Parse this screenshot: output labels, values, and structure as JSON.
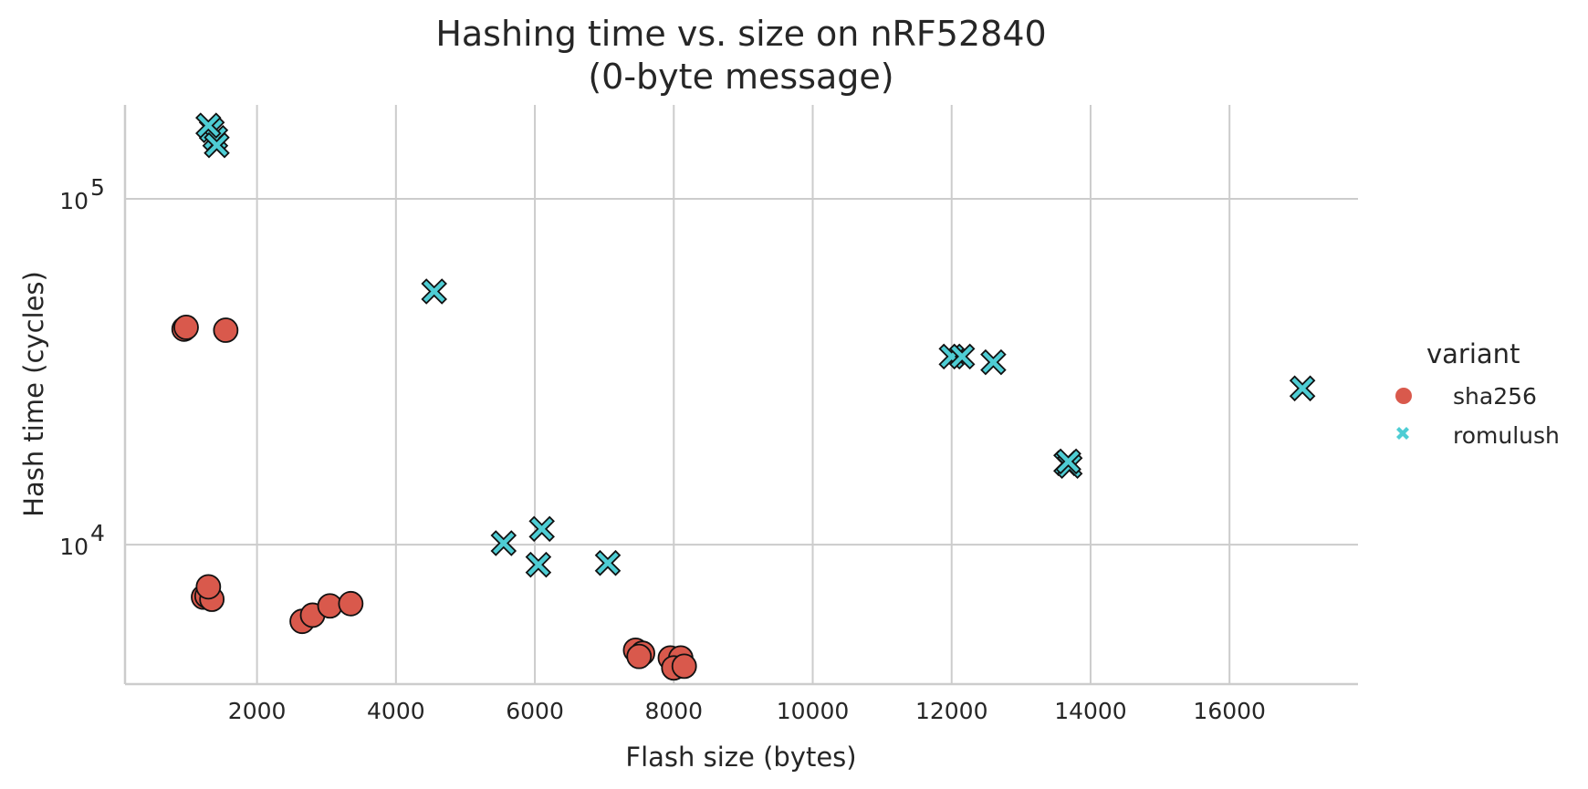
{
  "chart_data": {
    "type": "scatter",
    "title": "Hashing time vs. size on nRF52840",
    "subtitle": "(0-byte message)",
    "xlabel": "Flash size (bytes)",
    "ylabel": "Hash time (cycles)",
    "xlim": [
      100,
      17850
    ],
    "ylim": [
      3950,
      187000
    ],
    "xscale": "linear",
    "yscale": "log",
    "xticks": [
      2000,
      4000,
      6000,
      8000,
      10000,
      12000,
      14000,
      16000
    ],
    "xtick_labels": [
      "2000",
      "4000",
      "6000",
      "8000",
      "10000",
      "12000",
      "14000",
      "16000"
    ],
    "yticks": [
      10000,
      100000
    ],
    "ytick_labels": [
      {
        "base": "10",
        "exp": "4"
      },
      {
        "base": "10",
        "exp": "5"
      }
    ],
    "grid": true,
    "legend_title": "variant",
    "legend_position": "right",
    "series": [
      {
        "name": "sha256",
        "marker": "circle",
        "color": "#d9594c",
        "edge_color": "#111111",
        "points": [
          {
            "x": 950,
            "y": 42000
          },
          {
            "x": 980,
            "y": 42500
          },
          {
            "x": 1550,
            "y": 41700
          },
          {
            "x": 1230,
            "y": 7050
          },
          {
            "x": 1280,
            "y": 7100
          },
          {
            "x": 1350,
            "y": 6950
          },
          {
            "x": 1300,
            "y": 7550
          },
          {
            "x": 2650,
            "y": 6000
          },
          {
            "x": 2800,
            "y": 6250
          },
          {
            "x": 3050,
            "y": 6650
          },
          {
            "x": 3350,
            "y": 6750
          },
          {
            "x": 7450,
            "y": 4950
          },
          {
            "x": 7550,
            "y": 4850
          },
          {
            "x": 7500,
            "y": 4750
          },
          {
            "x": 7950,
            "y": 4700
          },
          {
            "x": 8100,
            "y": 4700
          },
          {
            "x": 8000,
            "y": 4400
          },
          {
            "x": 8150,
            "y": 4450
          }
        ]
      },
      {
        "name": "romulush",
        "marker": "x",
        "color": "#4ecdd4",
        "edge_color": "#111111",
        "points": [
          {
            "x": 1350,
            "y": 158000
          },
          {
            "x": 1400,
            "y": 150000
          },
          {
            "x": 1420,
            "y": 143000
          },
          {
            "x": 1300,
            "y": 163000
          },
          {
            "x": 4550,
            "y": 54000
          },
          {
            "x": 5550,
            "y": 10100
          },
          {
            "x": 6100,
            "y": 11100
          },
          {
            "x": 6050,
            "y": 8750
          },
          {
            "x": 7050,
            "y": 8850
          },
          {
            "x": 12000,
            "y": 35000
          },
          {
            "x": 12150,
            "y": 35000
          },
          {
            "x": 12600,
            "y": 33700
          },
          {
            "x": 13650,
            "y": 17200
          },
          {
            "x": 13700,
            "y": 16900
          },
          {
            "x": 13680,
            "y": 17400
          },
          {
            "x": 17050,
            "y": 28300
          }
        ]
      }
    ]
  }
}
